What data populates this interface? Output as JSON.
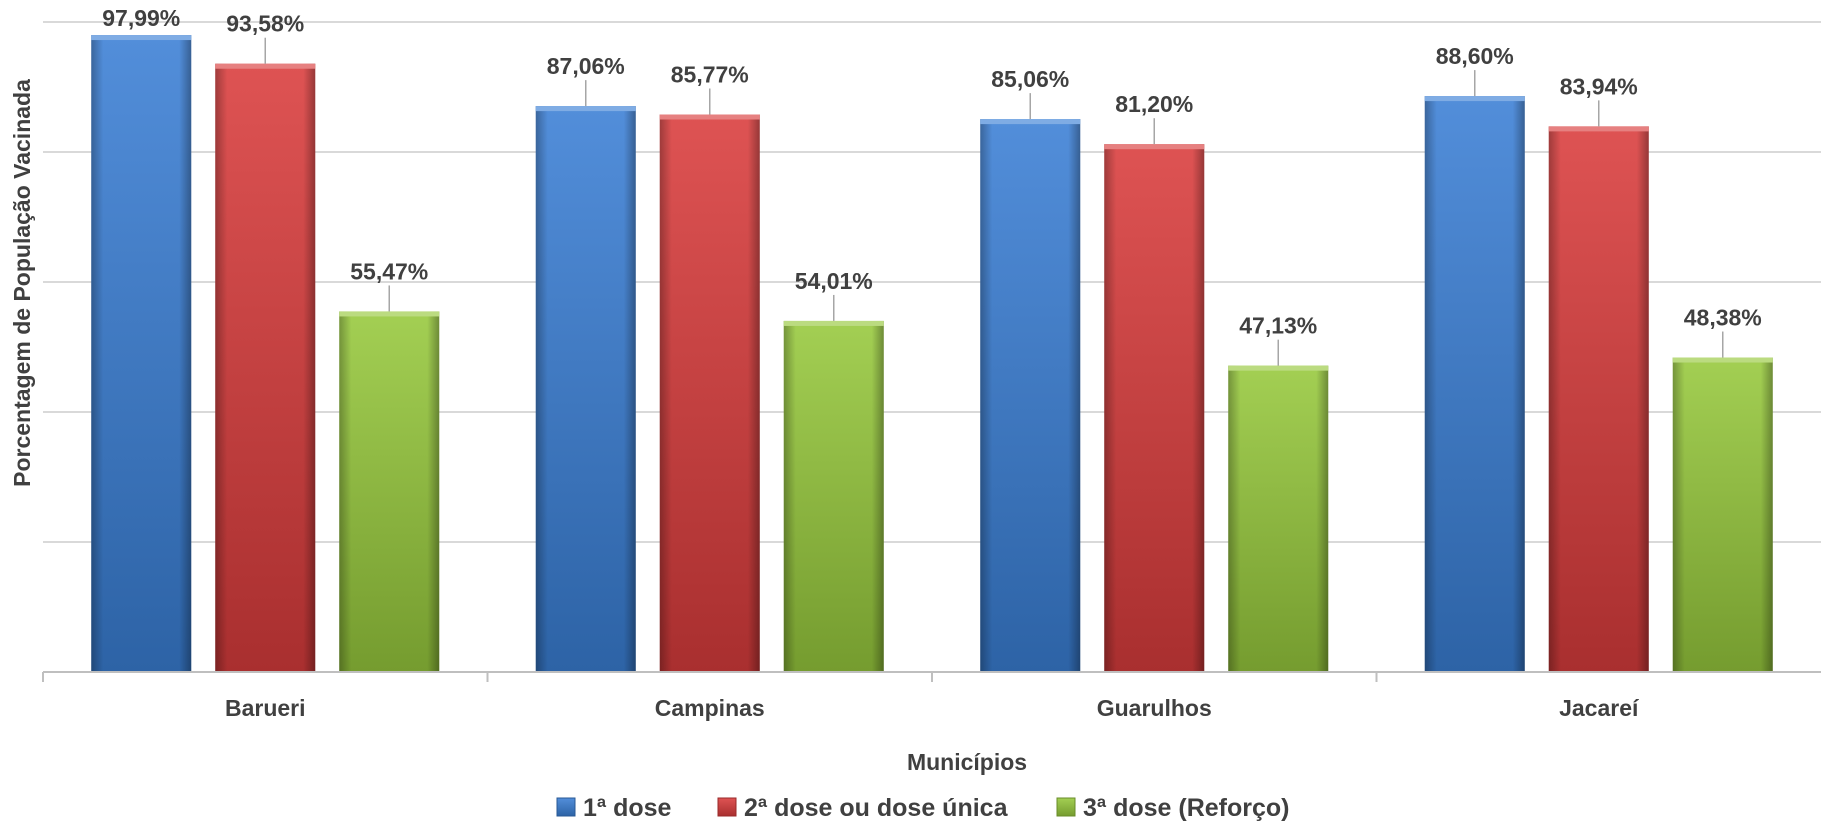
{
  "chart_data": {
    "type": "bar",
    "xlabel": "Municípios",
    "ylabel": "Porcentagem de População Vacinada",
    "ylim": [
      0,
      100
    ],
    "grid": true,
    "legend_position": "bottom",
    "categories": [
      "Barueri",
      "Campinas",
      "Guarulhos",
      "Jacareí"
    ],
    "series": [
      {
        "name": "1ª dose",
        "color": "#3a7fd5",
        "values": [
          97.99,
          87.06,
          85.06,
          88.6
        ],
        "labels": [
          "97,99%",
          "87,06%",
          "85,06%",
          "88,60%"
        ]
      },
      {
        "name": "2ª dose ou dose única",
        "color": "#d93c3c",
        "values": [
          93.58,
          85.77,
          81.2,
          83.94
        ],
        "labels": [
          "93,58%",
          "85,77%",
          "81,20%",
          "83,94%"
        ]
      },
      {
        "name": "3ª dose (Reforço)",
        "color": "#96c83c",
        "values": [
          55.47,
          54.01,
          47.13,
          48.38
        ],
        "labels": [
          "55,47%",
          "54,01%",
          "47,13%",
          "48,38%"
        ]
      }
    ]
  }
}
